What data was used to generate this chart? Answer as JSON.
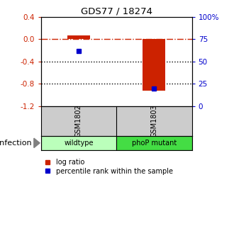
{
  "title": "GDS77 / 18274",
  "samples": [
    "GSM1802",
    "GSM1803"
  ],
  "conditions": [
    "wildtype",
    "phoP mutant"
  ],
  "log_ratios": [
    0.07,
    -0.92
  ],
  "percentile_ranks": [
    0.62,
    0.2
  ],
  "ylim_left": [
    -1.2,
    0.4
  ],
  "ylim_right": [
    0.0,
    1.0
  ],
  "left_yticks": [
    0.4,
    0.0,
    -0.4,
    -0.8,
    -1.2
  ],
  "right_yticks": [
    1.0,
    0.75,
    0.5,
    0.25,
    0.0
  ],
  "right_yticklabels": [
    "100%",
    "75",
    "50",
    "25",
    "0"
  ],
  "bar_color": "#cc2200",
  "point_color": "#0000cc",
  "hline_y": 0.0,
  "dotted_lines": [
    -0.4,
    -0.8
  ],
  "bar_width": 0.3,
  "condition_colors": [
    "#bbffbb",
    "#44dd44"
  ],
  "infection_label": "infection",
  "legend_labels": [
    "log ratio",
    "percentile rank within the sample"
  ],
  "background_color": "#ffffff",
  "plot_bg": "#ffffff",
  "gray_bg": "#cccccc"
}
